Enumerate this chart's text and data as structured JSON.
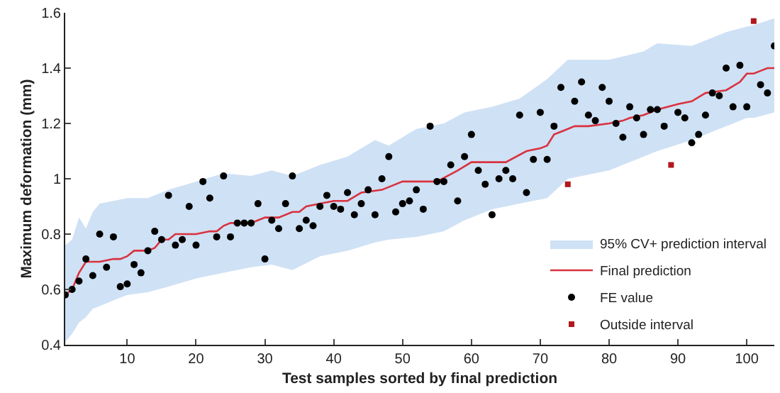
{
  "chart_data": {
    "type": "scatter",
    "xlabel": "Test samples sorted by final prediction",
    "ylabel": "Maximum deformation (mm)",
    "x": [
      1,
      2,
      3,
      4,
      5,
      6,
      7,
      8,
      9,
      10,
      11,
      12,
      13,
      14,
      15,
      16,
      17,
      18,
      19,
      20,
      21,
      22,
      23,
      24,
      25,
      26,
      27,
      28,
      29,
      30,
      31,
      32,
      33,
      34,
      35,
      36,
      37,
      38,
      39,
      40,
      41,
      42,
      43,
      44,
      45,
      46,
      47,
      48,
      49,
      50,
      51,
      52,
      53,
      54,
      55,
      56,
      57,
      58,
      59,
      60,
      61,
      62,
      63,
      64,
      65,
      66,
      67,
      68,
      69,
      70,
      71,
      72,
      73,
      74,
      75,
      76,
      77,
      78,
      79,
      80,
      81,
      82,
      83,
      84,
      85,
      86,
      87,
      88,
      89,
      90,
      91,
      92,
      93,
      94,
      95,
      96,
      97,
      98,
      99,
      100,
      101,
      102,
      103,
      104
    ],
    "xlim": [
      1,
      104
    ],
    "xticks": [
      10,
      20,
      30,
      40,
      50,
      60,
      70,
      80,
      90,
      100
    ],
    "ylim": [
      0.4,
      1.6
    ],
    "yticks": [
      0.4,
      0.6,
      0.8,
      1,
      1.2,
      1.4,
      1.6
    ],
    "grid": false,
    "legend": "bottom right",
    "marker": "circle",
    "series": [
      {
        "name": "95% CV+ prediction interval",
        "type": "area",
        "color": "#cfe1f5",
        "x": [
          1,
          2,
          3,
          4,
          5,
          6,
          8,
          10,
          13,
          16,
          20,
          24,
          28,
          31,
          34,
          38,
          42,
          46,
          48,
          52,
          56,
          59,
          63,
          67,
          71,
          74,
          80,
          85,
          87,
          92,
          97,
          100,
          101,
          104
        ],
        "values": [
          null,
          null,
          null,
          null,
          null,
          null,
          null,
          null,
          null,
          null,
          null,
          null,
          null,
          null,
          null,
          null,
          null,
          null,
          null,
          null,
          null,
          null,
          null,
          null,
          null,
          null,
          null,
          null,
          null,
          null,
          null,
          null,
          null,
          null
        ],
        "upper": [
          0.76,
          0.78,
          0.86,
          0.82,
          0.88,
          0.91,
          0.92,
          0.93,
          0.93,
          0.96,
          0.99,
          1.02,
          1.01,
          1.03,
          1.01,
          1.05,
          1.08,
          1.14,
          1.12,
          1.18,
          1.2,
          1.24,
          1.26,
          1.29,
          1.36,
          1.43,
          1.43,
          1.46,
          1.49,
          1.48,
          1.53,
          1.55,
          1.555,
          1.58
        ],
        "lower": [
          0.41,
          0.44,
          0.48,
          0.5,
          0.53,
          0.54,
          0.56,
          0.58,
          0.59,
          0.61,
          0.64,
          0.66,
          0.68,
          0.69,
          0.67,
          0.72,
          0.74,
          0.77,
          0.78,
          0.79,
          0.81,
          0.85,
          0.89,
          0.91,
          0.93,
          1.0,
          1.03,
          1.08,
          1.1,
          1.14,
          1.19,
          1.22,
          1.22,
          1.24
        ]
      },
      {
        "name": "Final prediction",
        "type": "line",
        "color": "#d9323f",
        "marker": "none",
        "x": [
          1,
          2,
          3,
          4,
          6,
          8,
          9,
          10,
          11,
          13,
          14,
          15,
          16,
          17,
          20,
          22,
          23,
          24,
          25,
          28,
          29,
          30,
          32,
          34,
          35,
          36,
          38,
          40,
          42,
          44,
          47,
          50,
          52,
          55,
          58,
          60,
          65,
          68,
          70,
          71,
          72,
          73,
          75,
          77,
          80,
          82,
          83,
          85,
          87,
          90,
          92,
          94,
          97,
          99,
          100,
          101,
          102,
          103,
          104
        ],
        "values": [
          0.58,
          0.6,
          0.66,
          0.7,
          0.7,
          0.71,
          0.71,
          0.72,
          0.74,
          0.74,
          0.75,
          0.78,
          0.78,
          0.8,
          0.8,
          0.81,
          0.81,
          0.83,
          0.84,
          0.84,
          0.85,
          0.86,
          0.86,
          0.88,
          0.88,
          0.9,
          0.91,
          0.92,
          0.92,
          0.95,
          0.96,
          0.99,
          0.99,
          0.99,
          1.03,
          1.06,
          1.06,
          1.1,
          1.11,
          1.12,
          1.16,
          1.17,
          1.19,
          1.19,
          1.2,
          1.21,
          1.22,
          1.23,
          1.25,
          1.27,
          1.28,
          1.31,
          1.32,
          1.35,
          1.38,
          1.38,
          1.39,
          1.4,
          1.4
        ]
      },
      {
        "name": "FE value",
        "color": "#000000",
        "values": [
          0.58,
          0.6,
          0.63,
          0.71,
          0.65,
          0.8,
          0.68,
          0.79,
          0.61,
          0.62,
          0.69,
          0.66,
          0.74,
          0.81,
          0.78,
          0.94,
          0.76,
          0.78,
          0.9,
          0.76,
          0.99,
          0.93,
          0.79,
          1.01,
          0.79,
          0.84,
          0.84,
          0.84,
          0.91,
          0.71,
          0.85,
          0.82,
          0.91,
          1.01,
          0.82,
          0.85,
          0.83,
          0.9,
          0.94,
          0.9,
          0.89,
          0.95,
          0.87,
          0.91,
          0.96,
          0.87,
          1.0,
          1.08,
          0.88,
          0.91,
          0.92,
          0.96,
          0.89,
          1.19,
          0.99,
          0.99,
          1.05,
          0.92,
          1.08,
          1.16,
          1.03,
          0.98,
          0.87,
          1.0,
          1.03,
          1.0,
          1.23,
          0.95,
          1.07,
          1.24,
          1.07,
          1.19,
          1.33,
          null,
          1.28,
          1.35,
          1.23,
          1.21,
          1.33,
          1.28,
          1.2,
          1.15,
          1.26,
          1.22,
          1.16,
          1.25,
          1.25,
          1.19,
          null,
          1.24,
          1.22,
          1.13,
          1.16,
          1.23,
          1.31,
          1.3,
          1.4,
          1.26,
          1.41,
          1.26,
          null,
          1.34,
          1.31,
          1.48
        ]
      },
      {
        "name": "Outside interval",
        "type": "scatter",
        "color": "#b0181e",
        "marker": "square",
        "x": [
          74,
          89,
          101
        ],
        "values": [
          0.98,
          1.05,
          1.57
        ]
      }
    ]
  }
}
